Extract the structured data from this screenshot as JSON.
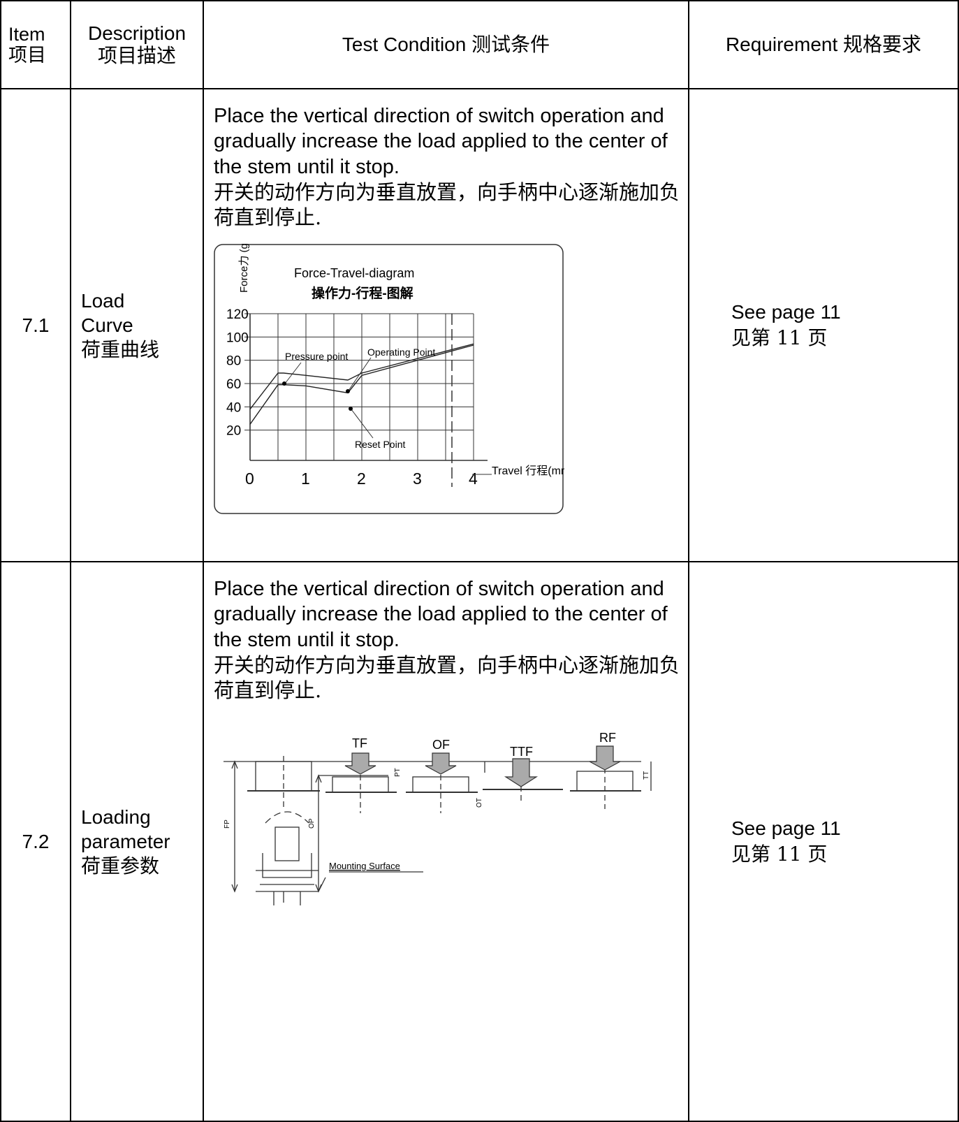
{
  "header": {
    "item": "Item",
    "item_cn": "项目",
    "description": "Description",
    "description_cn": "项目描述",
    "condition": "Test Condition",
    "condition_cn": "测试条件",
    "requirement": "Requirement",
    "requirement_cn": "规格要求"
  },
  "rows": [
    {
      "item": "7.1",
      "desc_en": [
        "Load",
        "Curve"
      ],
      "desc_cn": "荷重曲线",
      "cond_en": "Place the vertical direction of switch operation and gradually increase the load applied to the center of the stem until it stop.",
      "cond_cn": "开关的动作方向为垂直放置，向手柄中心逐渐施加负荷直到停止.",
      "req_en": "See page 11",
      "req_cn": "见第 11 页"
    },
    {
      "item": "7.2",
      "desc_en": [
        "Loading",
        "parameter"
      ],
      "desc_cn": "荷重参数",
      "cond_en": "Place the vertical direction of switch operation and gradually increase the load applied to the center of the stem until it stop.",
      "cond_cn": "开关的动作方向为垂直放置，向手柄中心逐渐施加负荷直到停止.",
      "req_en": "See page 11",
      "req_cn": "见第 11 页"
    }
  ],
  "chart_data": {
    "type": "line",
    "title": "Force-Travel-diagram",
    "subtitle": "操作力-行程-图解",
    "ylabel": "Force力 (gf)",
    "xlabel": "Travel 行程(mm)",
    "x_ticks": [
      "0",
      "1",
      "2",
      "3",
      "4"
    ],
    "y_ticks": [
      "120",
      "100",
      "80",
      "60",
      "40",
      "20"
    ],
    "xlim": [
      0,
      4
    ],
    "ylim": [
      0,
      120
    ],
    "grid": true,
    "annotations": [
      "Pressure point",
      "Operating Point",
      "Reset Point"
    ],
    "series": [
      {
        "x": [
          0,
          0.5,
          0.6,
          1.0,
          1.75,
          2.0,
          4.0
        ],
        "y": [
          38,
          69,
          69,
          67,
          63,
          69,
          94
        ]
      },
      {
        "x": [
          0,
          0.5,
          0.6,
          1.0,
          1.75,
          2.0,
          4.0
        ],
        "y": [
          25,
          59,
          59,
          58,
          52,
          67,
          93
        ]
      }
    ]
  },
  "diagram": {
    "labels": [
      "TF",
      "OF",
      "TTF",
      "RF",
      "FP",
      "OP",
      "TT",
      "PT",
      "OT",
      "Mounting Surface"
    ]
  }
}
